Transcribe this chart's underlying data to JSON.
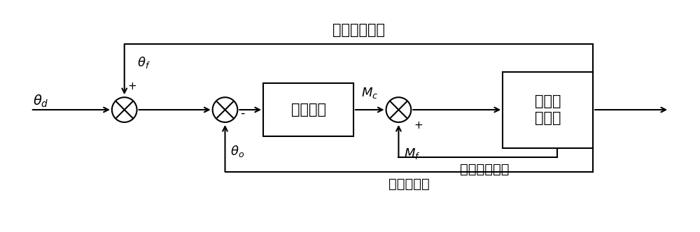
{
  "bg_color": "#ffffff",
  "line_color": "#000000",
  "title": "线加速度反馈",
  "label_theta_d": "$\\theta_d$",
  "label_theta_f": "$\\theta_f$",
  "label_theta_o": "$\\theta_o$",
  "label_Mc": "$M_c$",
  "label_Mf": "$M_f$",
  "label_plus1": "+",
  "label_minus": "-",
  "label_plus2": "+",
  "label_huamo": "滑模控制",
  "label_drone_line1": "四旋翼",
  "label_drone_line2": "无人机",
  "label_angular_fb": "角加速度反馈",
  "label_measure_fb": "测量值反馈",
  "figw": 10.0,
  "figh": 3.32,
  "dpi": 100
}
